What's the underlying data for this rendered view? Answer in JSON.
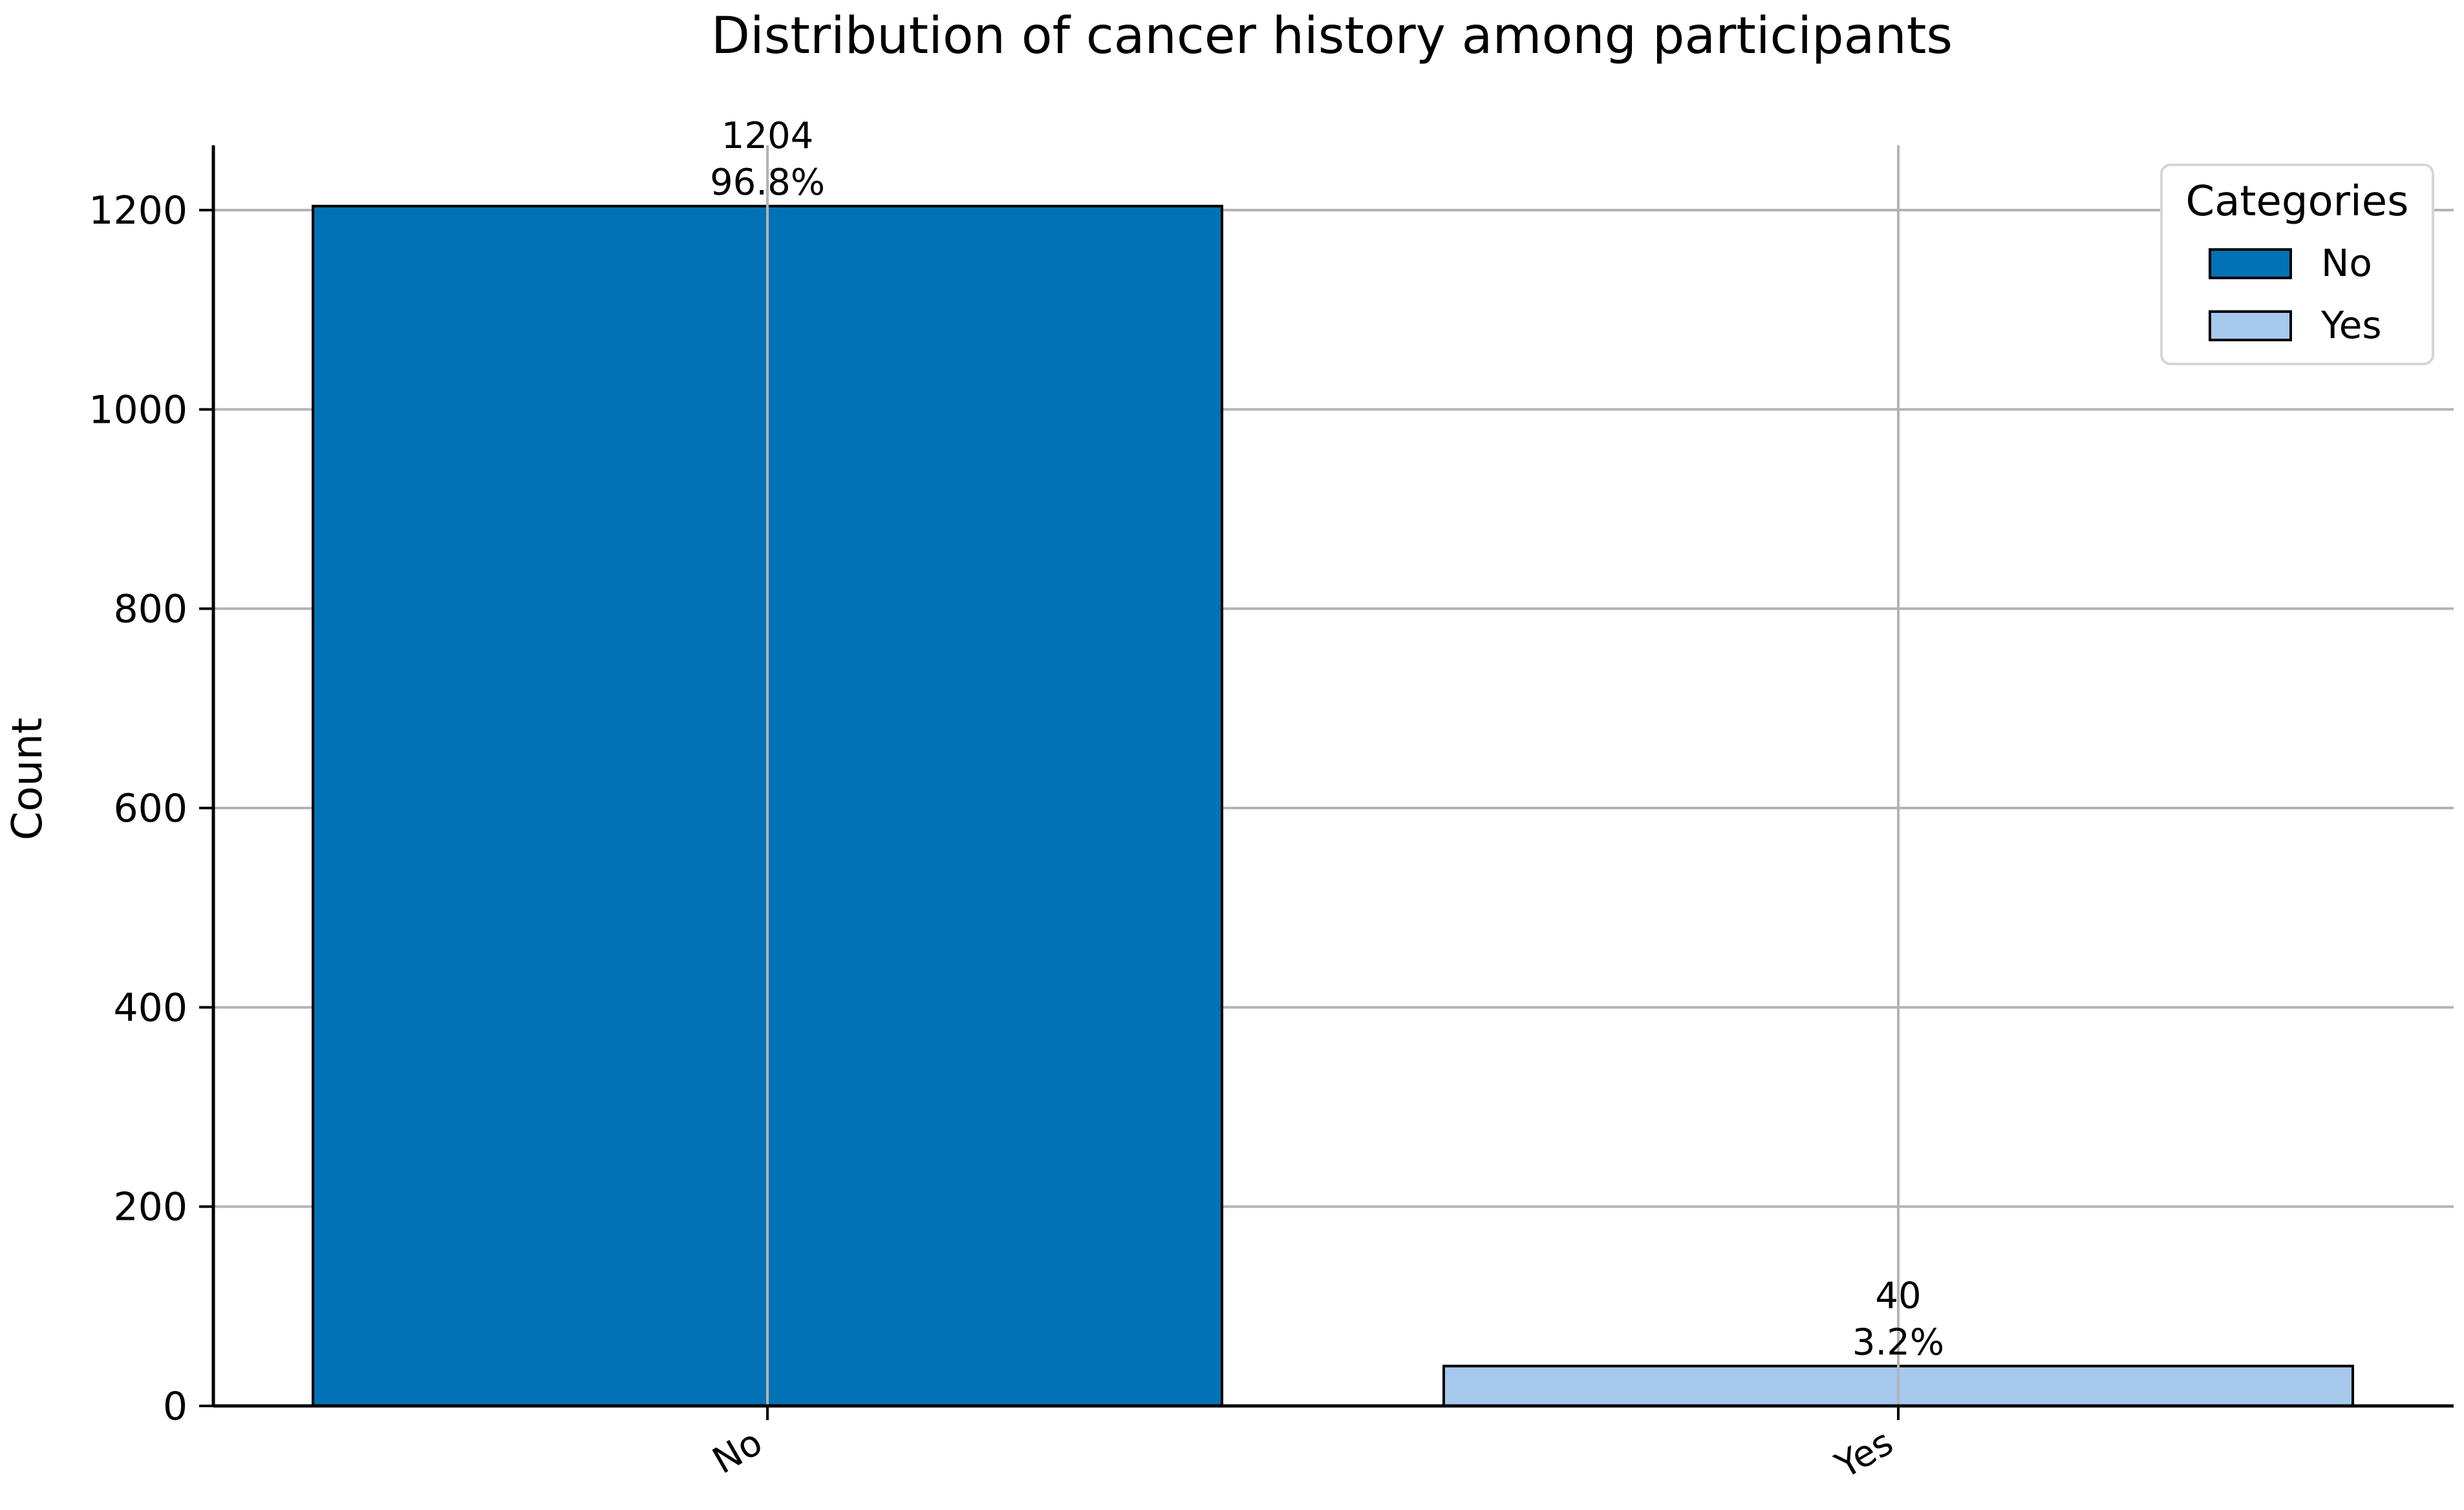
{
  "chart_data": {
    "type": "bar",
    "title": "Distribution of cancer history among participants",
    "xlabel": "",
    "ylabel": "Count",
    "categories": [
      "No",
      "Yes"
    ],
    "values": [
      1204,
      40
    ],
    "bar_labels": [
      {
        "count": "1204",
        "percent": "96.8%"
      },
      {
        "count": "40",
        "percent": "3.2%"
      }
    ],
    "colors": [
      "#0072b5",
      "#a6c8ed"
    ],
    "edge_color": "#000000",
    "ylim": [
      0,
      1265
    ],
    "yticks": [
      0,
      200,
      400,
      600,
      800,
      1000,
      1200
    ],
    "grid": true,
    "legend": {
      "title": "Categories",
      "entries": [
        "No",
        "Yes"
      ],
      "placement": "top-right"
    }
  }
}
